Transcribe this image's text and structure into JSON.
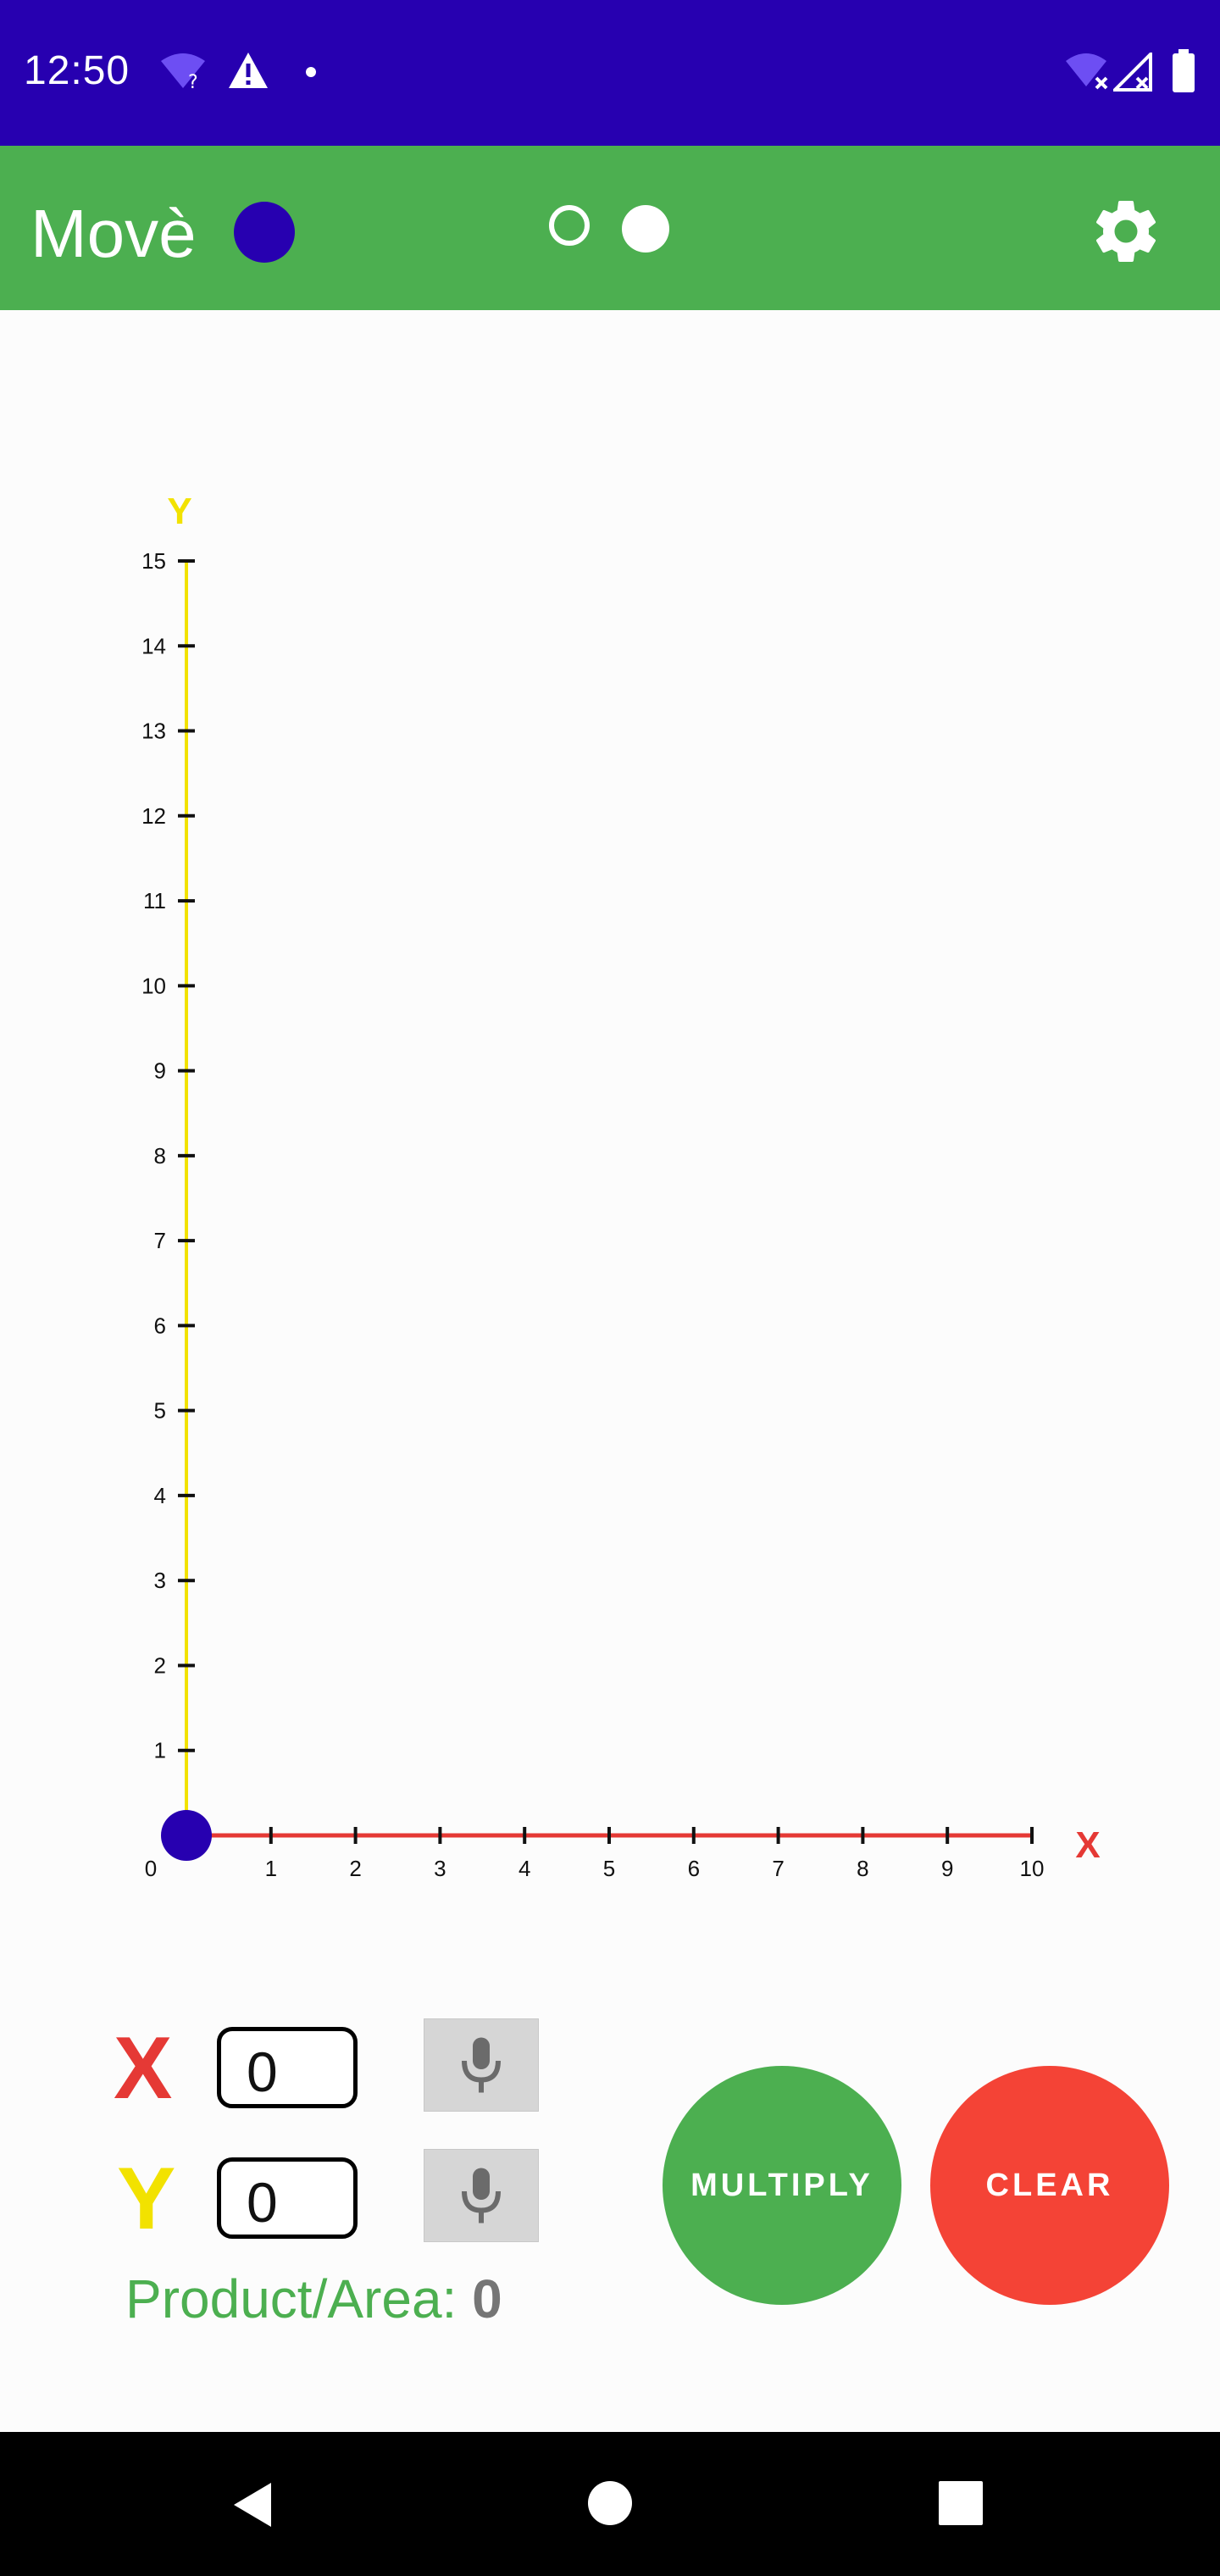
{
  "status_bar": {
    "time": "12:50",
    "icons": [
      "wifi-question-icon",
      "warning-icon",
      "notification-dot-icon",
      "wifi-off-icon",
      "signal-off-icon",
      "battery-icon"
    ]
  },
  "app_bar": {
    "title": "Movè",
    "title_dot_color": "#2700b0",
    "settings_icon": "gear-icon"
  },
  "chart_data": {
    "type": "scatter",
    "xlabel": "X",
    "ylabel": "Y",
    "x_ticks": [
      "0",
      "1",
      "2",
      "3",
      "4",
      "5",
      "6",
      "7",
      "8",
      "9",
      "10"
    ],
    "y_ticks": [
      "1",
      "2",
      "3",
      "4",
      "5",
      "6",
      "7",
      "8",
      "9",
      "10",
      "11",
      "12",
      "13",
      "14",
      "15"
    ],
    "xlim": [
      0,
      10
    ],
    "ylim": [
      0,
      15
    ],
    "points": [
      {
        "x": 0,
        "y": 0
      }
    ],
    "x_axis_color": "#e53935",
    "y_axis_color": "#f2e200",
    "point_color": "#2700b0"
  },
  "controls": {
    "x_label": "X",
    "y_label": "Y",
    "x_value": "0",
    "y_value": "0",
    "x_label_color": "#e53935",
    "y_label_color": "#f2e200",
    "mic_icon": "microphone-icon",
    "product_label": "Product/Area:",
    "product_value": "0",
    "multiply_label": "MULTIPLY",
    "clear_label": "CLEAR",
    "multiply_color": "#4caf50",
    "clear_color": "#f44336"
  },
  "nav_bar": {
    "icons": [
      "back-icon",
      "home-icon",
      "recents-icon"
    ]
  }
}
